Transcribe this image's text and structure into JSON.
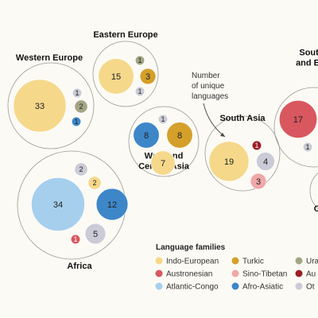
{
  "annotation": {
    "lines": [
      "Number",
      "of unique",
      "languages"
    ]
  },
  "legend": {
    "title": "Language families",
    "items": [
      {
        "label": "Indo-European",
        "color": "#f5d88a"
      },
      {
        "label": "Turkic",
        "color": "#d4a02b"
      },
      {
        "label": "Ura",
        "color": "#a3a585"
      },
      {
        "label": "Austronesian",
        "color": "#d9575f"
      },
      {
        "label": "Sino-Tibetan",
        "color": "#f0a8a8"
      },
      {
        "label": "Au",
        "color": "#9b1c24"
      },
      {
        "label": "Atlantic-Congo",
        "color": "#a6cfee"
      },
      {
        "label": "Afro-Asiatic",
        "color": "#3d87c9"
      },
      {
        "label": "Ot",
        "color": "#cacbd6"
      }
    ]
  },
  "chart_data": {
    "type": "bubble",
    "title": "",
    "regions": [
      {
        "name": "Western Europe",
        "name_lines": [
          "Western Europe"
        ],
        "values": [
          {
            "family": "Indo-European",
            "value": 33
          },
          {
            "family": "Other",
            "value": 1
          },
          {
            "family": "Uralic",
            "value": 2
          },
          {
            "family": "Afro-Asiatic",
            "value": 1
          }
        ]
      },
      {
        "name": "Eastern Europe",
        "name_lines": [
          "Eastern Europe"
        ],
        "values": [
          {
            "family": "Indo-European",
            "value": 15
          },
          {
            "family": "Uralic",
            "value": 1
          },
          {
            "family": "Turkic",
            "value": 3
          },
          {
            "family": "Other",
            "value": 1
          }
        ]
      },
      {
        "name": "West and Central Asia",
        "name_lines": [
          "West and",
          "Central Asia"
        ],
        "values": [
          {
            "family": "Other",
            "value": 1
          },
          {
            "family": "Afro-Asiatic",
            "value": 8
          },
          {
            "family": "Turkic",
            "value": 8
          },
          {
            "family": "Indo-European",
            "value": 7
          }
        ]
      },
      {
        "name": "South Asia",
        "name_lines": [
          "South Asia"
        ],
        "values": [
          {
            "family": "Indo-European",
            "value": 19
          },
          {
            "family": "Austroasiatic",
            "value": 1
          },
          {
            "family": "Other",
            "value": 4
          },
          {
            "family": "Sino-Tibetan",
            "value": 3
          }
        ]
      },
      {
        "name": "Southeast Asia",
        "name_lines": [
          "Southe",
          "and East"
        ],
        "values": [
          {
            "family": "Austronesian",
            "value": 17
          },
          {
            "family": "Other",
            "value": 1
          }
        ]
      },
      {
        "name": "Africa",
        "name_lines": [
          "Africa"
        ],
        "values": [
          {
            "family": "Atlantic-Congo",
            "value": 34
          },
          {
            "family": "Afro-Asiatic",
            "value": 12
          },
          {
            "family": "Other",
            "value": 2
          },
          {
            "family": "Indo-European",
            "value": 2
          },
          {
            "family": "Austronesian",
            "value": 1
          },
          {
            "family": "Other",
            "value": 5
          }
        ]
      },
      {
        "name": "Oceania",
        "name_lines": [
          "O"
        ],
        "values": []
      }
    ]
  }
}
